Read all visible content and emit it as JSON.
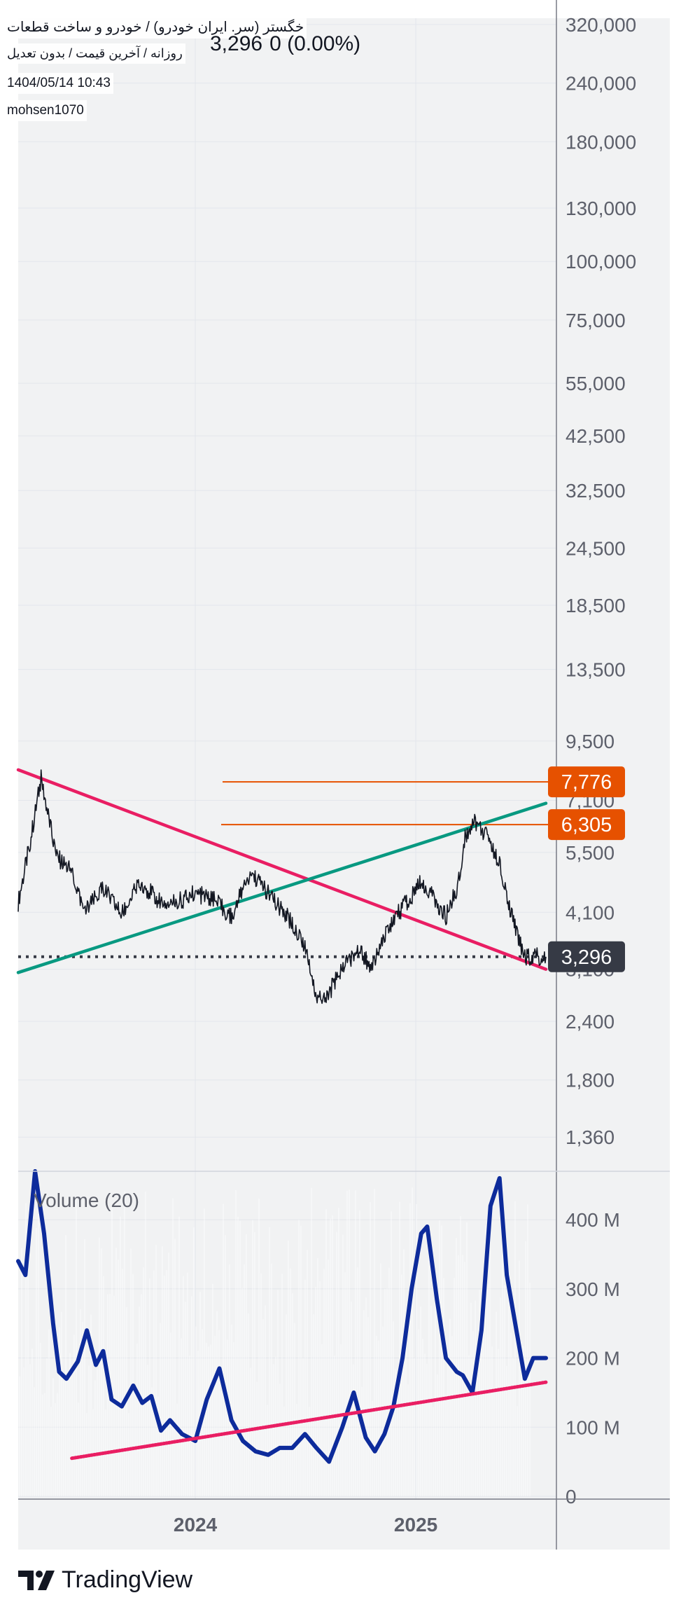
{
  "header": {
    "title": "خگستر (سر. ایران خودرو) / خودرو و ساخت قطعات",
    "subtitle": "روزانه / آخرین قیمت / بدون تعدیل",
    "datetime": "1404/05/14 10:43",
    "author": "mohsen1070",
    "last_price": "3,296",
    "change": "0 (0.00%)"
  },
  "volume_label": "Volume (20)",
  "footer": {
    "brand": "TradingView",
    "logo_icon": "tradingview-logo-icon"
  },
  "colors": {
    "price": "#131722",
    "pink_trendline": "#e91e63",
    "green_trendline": "#089981",
    "horizontal_levels": "#e65100",
    "volume_ma": "#0d2b9b",
    "badge_dark": "#363a45"
  },
  "chart_data": [
    {
      "type": "line",
      "panel": "price",
      "scale": "log",
      "ylim": [
        1150,
        330000
      ],
      "y_ticks": [
        "320,000",
        "240,000",
        "180,000",
        "130,000",
        "100,000",
        "75,000",
        "55,000",
        "42,500",
        "32,500",
        "24,500",
        "18,500",
        "13,500",
        "9,500",
        "7,100",
        "5,500",
        "4,100",
        "3,100",
        "2,400",
        "1,800",
        "1,360"
      ],
      "x_ticks": [
        "2024",
        "2025"
      ],
      "x_range": [
        "2023-03-13",
        "2025-08-05"
      ],
      "series": [
        {
          "style": "daily-candles",
          "x": [
            "2023-03-13",
            "2023-04-01",
            "2023-04-20",
            "2023-05-15",
            "2023-06-10",
            "2023-07-01",
            "2023-08-01",
            "2023-09-01",
            "2023-10-01",
            "2023-11-01",
            "2023-12-01",
            "2024-01-01",
            "2024-02-01",
            "2024-03-01",
            "2024-04-01",
            "2024-04-20",
            "2024-05-15",
            "2024-06-10",
            "2024-07-01",
            "2024-07-20",
            "2024-08-10",
            "2024-09-01",
            "2024-10-01",
            "2024-10-20",
            "2024-11-10",
            "2024-12-01",
            "2024-12-20",
            "2025-01-10",
            "2025-02-01",
            "2025-02-20",
            "2025-03-10",
            "2025-03-25",
            "2025-04-10",
            "2025-05-01",
            "2025-05-20",
            "2025-06-10",
            "2025-07-01",
            "2025-07-20",
            "2025-08-05"
          ],
          "y": [
            4300,
            5700,
            7900,
            5400,
            5000,
            4100,
            4600,
            4050,
            4750,
            4350,
            4300,
            4500,
            4350,
            4000,
            5000,
            4700,
            4250,
            3900,
            3500,
            2700,
            2750,
            3150,
            3400,
            3100,
            3650,
            4050,
            4350,
            4750,
            4400,
            4000,
            4600,
            6000,
            6400,
            5900,
            5200,
            4000,
            3300,
            3300,
            3296
          ]
        }
      ],
      "horizontal_levels": [
        7776,
        6305,
        3296
      ],
      "price_badges": [
        "7,776",
        "6,305",
        "3,296"
      ],
      "trendlines": [
        {
          "color": "pink",
          "from": [
            "2023-03-13",
            8250
          ],
          "to": [
            "2025-08-05",
            3100
          ]
        },
        {
          "color": "green",
          "from": [
            "2023-03-13",
            3050
          ],
          "to": [
            "2025-08-05",
            7000
          ]
        }
      ]
    },
    {
      "type": "line",
      "panel": "volume",
      "title": "Volume (20)",
      "ylim": [
        0,
        470
      ],
      "y_ticks": [
        "400 M",
        "300 M",
        "200 M",
        "100 M",
        "0"
      ],
      "y_unit": "M",
      "series": [
        {
          "name": "Volume (20)",
          "x": [
            "2023-03-13",
            "2023-03-25",
            "2023-04-10",
            "2023-04-25",
            "2023-05-10",
            "2023-05-20",
            "2023-06-01",
            "2023-06-20",
            "2023-07-05",
            "2023-07-20",
            "2023-08-01",
            "2023-08-15",
            "2023-09-01",
            "2023-09-20",
            "2023-10-05",
            "2023-10-20",
            "2023-11-05",
            "2023-11-20",
            "2023-12-10",
            "2024-01-01",
            "2024-01-20",
            "2024-02-10",
            "2024-03-01",
            "2024-03-20",
            "2024-04-10",
            "2024-05-01",
            "2024-05-20",
            "2024-06-10",
            "2024-07-01",
            "2024-07-20",
            "2024-08-10",
            "2024-09-01",
            "2024-09-20",
            "2024-10-10",
            "2024-10-25",
            "2024-11-10",
            "2024-11-25",
            "2024-12-10",
            "2024-12-25",
            "2025-01-10",
            "2025-01-20",
            "2025-02-05",
            "2025-02-20",
            "2025-03-10",
            "2025-03-20",
            "2025-04-05",
            "2025-04-20",
            "2025-05-05",
            "2025-05-20",
            "2025-06-01",
            "2025-06-15",
            "2025-07-01",
            "2025-07-15",
            "2025-08-05"
          ],
          "y": [
            340,
            320,
            470,
            380,
            250,
            180,
            170,
            195,
            240,
            190,
            210,
            140,
            130,
            160,
            135,
            145,
            95,
            110,
            90,
            80,
            140,
            185,
            110,
            80,
            65,
            60,
            70,
            70,
            90,
            70,
            50,
            100,
            150,
            85,
            65,
            90,
            130,
            200,
            300,
            380,
            390,
            285,
            200,
            180,
            175,
            150,
            240,
            420,
            460,
            320,
            250,
            170,
            200,
            200
          ]
        }
      ],
      "trendline": {
        "color": "pink",
        "from": [
          "2023-06-10",
          55
        ],
        "to": [
          "2025-08-05",
          165
        ]
      }
    }
  ]
}
